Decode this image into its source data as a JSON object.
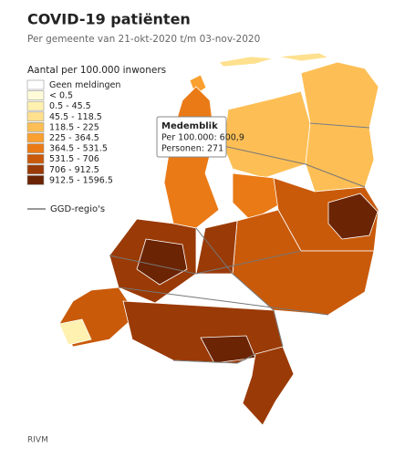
{
  "header": {
    "title": "COVID-19 patiënten",
    "subtitle": "Per gemeente van 21-okt-2020 t/m 03-nov-2020"
  },
  "legend": {
    "title": "Aantal per 100.000 inwoners",
    "classes": [
      {
        "label": "Geen meldingen",
        "color": "#ffffff"
      },
      {
        "label": "< 0.5",
        "color": "#fffbd9"
      },
      {
        "label": "0.5 - 45.5",
        "color": "#fff1b0"
      },
      {
        "label": "45.5 - 118.5",
        "color": "#fee08e"
      },
      {
        "label": "118.5 - 225",
        "color": "#fdbf55"
      },
      {
        "label": "225 - 364.5",
        "color": "#f9a030"
      },
      {
        "label": "364.5 - 531.5",
        "color": "#ea7a16"
      },
      {
        "label": "531.5 - 706",
        "color": "#c95a0a"
      },
      {
        "label": "706 - 912.5",
        "color": "#9a3a06"
      },
      {
        "label": "912.5 - 1596.5",
        "color": "#6b2404"
      }
    ],
    "boundary_label": "GGD-regio's"
  },
  "tooltip": {
    "name": "Medemblik",
    "lines": [
      "Per 100.000: 600,9",
      "Personen: 271"
    ]
  },
  "source": "RIVM"
}
